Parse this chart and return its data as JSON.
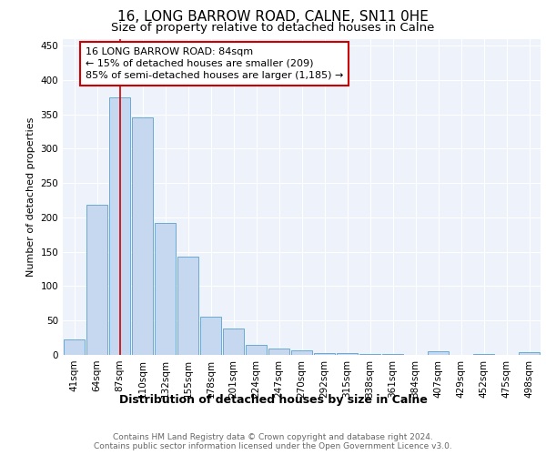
{
  "title1": "16, LONG BARROW ROAD, CALNE, SN11 0HE",
  "title2": "Size of property relative to detached houses in Calne",
  "xlabel": "Distribution of detached houses by size in Calne",
  "ylabel": "Number of detached properties",
  "categories": [
    "41sqm",
    "64sqm",
    "87sqm",
    "110sqm",
    "132sqm",
    "155sqm",
    "178sqm",
    "201sqm",
    "224sqm",
    "247sqm",
    "270sqm",
    "292sqm",
    "315sqm",
    "338sqm",
    "361sqm",
    "384sqm",
    "407sqm",
    "429sqm",
    "452sqm",
    "475sqm",
    "498sqm"
  ],
  "values": [
    22,
    218,
    375,
    345,
    192,
    143,
    55,
    38,
    14,
    9,
    7,
    3,
    2,
    1,
    1,
    0,
    5,
    0,
    1,
    0,
    4
  ],
  "bar_color": "#c5d8f0",
  "bar_edge_color": "#6aaad4",
  "vline_x": 2,
  "vline_color": "#cc0000",
  "annotation_text": "16 LONG BARROW ROAD: 84sqm\n← 15% of detached houses are smaller (209)\n85% of semi-detached houses are larger (1,185) →",
  "annotation_box_color": "#ffffff",
  "annotation_box_edgecolor": "#cc0000",
  "ylim": [
    0,
    460
  ],
  "yticks": [
    0,
    50,
    100,
    150,
    200,
    250,
    300,
    350,
    400,
    450
  ],
  "background_color": "#edf2fb",
  "footer_text": "Contains HM Land Registry data © Crown copyright and database right 2024.\nContains public sector information licensed under the Open Government Licence v3.0.",
  "title1_fontsize": 11,
  "title2_fontsize": 9.5,
  "xlabel_fontsize": 9,
  "ylabel_fontsize": 8,
  "tick_fontsize": 7.5,
  "annotation_fontsize": 8,
  "footer_fontsize": 6.5
}
